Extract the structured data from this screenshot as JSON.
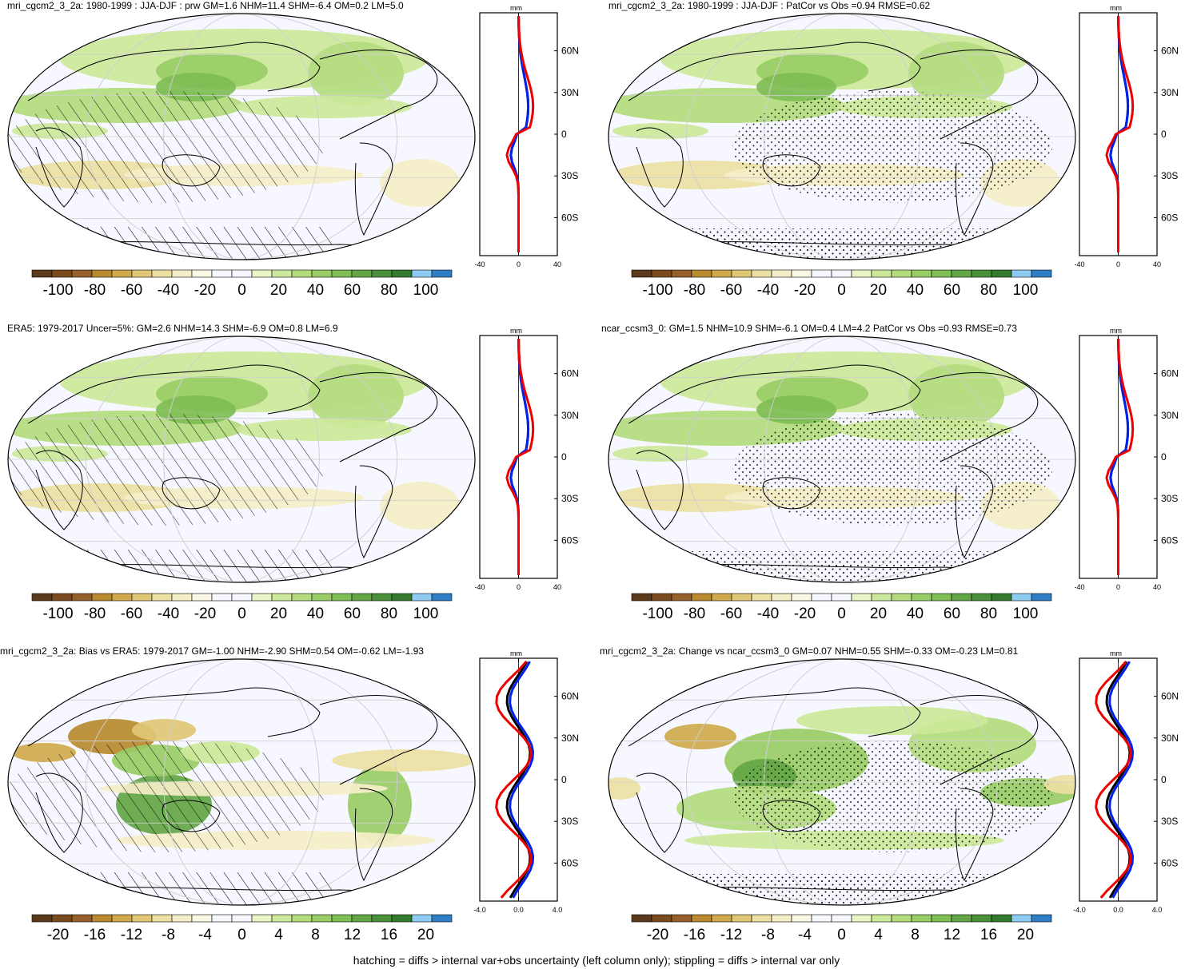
{
  "panels": [
    {
      "id": "p1",
      "title": "mri_cgcm2_3_2a: 1980-1999 : JJA-DJF : prw GM=1.6 NHM=11.4 SHM=-6.4 OM=0.2 LM=5.0",
      "zonal": {
        "unit": "mm",
        "xticks": [
          "-40",
          "0",
          "40"
        ],
        "xlim": [
          -40,
          40
        ],
        "lat_labels": [
          "60N",
          "30N",
          "0",
          "30S",
          "60S"
        ]
      },
      "colorbar": {
        "labels": [
          "-100",
          "-80",
          "-60",
          "-40",
          "-20",
          "0",
          "20",
          "40",
          "60",
          "80",
          "100"
        ]
      },
      "pattern": "hatch"
    },
    {
      "id": "p2",
      "title": "mri_cgcm2_3_2a: 1980-1999 : JJA-DJF : PatCor vs Obs =0.94 RMSE=0.62",
      "zonal": {
        "unit": "mm",
        "xticks": [
          "-40",
          "0",
          "40"
        ],
        "xlim": [
          -40,
          40
        ],
        "lat_labels": [
          "60N",
          "30N",
          "0",
          "30S",
          "60S"
        ]
      },
      "colorbar": {
        "labels": [
          "-100",
          "-80",
          "-60",
          "-40",
          "-20",
          "0",
          "20",
          "40",
          "60",
          "80",
          "100"
        ]
      },
      "pattern": "stipple"
    },
    {
      "id": "p3",
      "title": "ERA5: 1979-2017 Uncer=5%: GM=2.6 NHM=14.3 SHM=-6.9 OM=0.8 LM=6.9",
      "zonal": {
        "unit": "mm",
        "xticks": [
          "-40",
          "0",
          "40"
        ],
        "xlim": [
          -40,
          40
        ],
        "lat_labels": [
          "60N",
          "30N",
          "0",
          "30S",
          "60S"
        ]
      },
      "colorbar": {
        "labels": [
          "-100",
          "-80",
          "-60",
          "-40",
          "-20",
          "0",
          "20",
          "40",
          "60",
          "80",
          "100"
        ]
      },
      "pattern": "hatch"
    },
    {
      "id": "p4",
      "title": "ncar_ccsm3_0: GM=1.5 NHM=10.9 SHM=-6.1 OM=0.4 LM=4.2 PatCor vs Obs =0.93 RMSE=0.73",
      "zonal": {
        "unit": "mm",
        "xticks": [
          "-40",
          "0",
          "40"
        ],
        "xlim": [
          -40,
          40
        ],
        "lat_labels": [
          "60N",
          "30N",
          "0",
          "30S",
          "60S"
        ]
      },
      "colorbar": {
        "labels": [
          "-100",
          "-80",
          "-60",
          "-40",
          "-20",
          "0",
          "20",
          "40",
          "60",
          "80",
          "100"
        ]
      },
      "pattern": "stipple"
    },
    {
      "id": "p5",
      "title": "mri_cgcm2_3_2a: Bias vs ERA5: 1979-2017 GM=-1.00 NHM=-2.90 SHM=0.54 OM=-0.62 LM=-1.93",
      "zonal": {
        "unit": "mm",
        "xticks": [
          "-4.0",
          "0.0",
          "4.0"
        ],
        "xlim": [
          -4,
          4
        ],
        "lat_labels": [
          "60N",
          "30N",
          "0",
          "30S",
          "60S"
        ]
      },
      "colorbar": {
        "labels": [
          "-20",
          "-16",
          "-12",
          "-8",
          "-4",
          "0",
          "4",
          "8",
          "12",
          "16",
          "20"
        ]
      },
      "pattern": "hatch"
    },
    {
      "id": "p6",
      "title": "mri_cgcm2_3_2a: Change vs ncar_ccsm3_0 GM=0.07 NHM=0.55 SHM=-0.33 OM=-0.23 LM=0.81",
      "zonal": {
        "unit": "mm",
        "xticks": [
          "-4.0",
          "0.0",
          "4.0"
        ],
        "xlim": [
          -4,
          4
        ],
        "lat_labels": [
          "60N",
          "30N",
          "0",
          "30S",
          "60S"
        ]
      },
      "colorbar": {
        "labels": [
          "-20",
          "-16",
          "-12",
          "-8",
          "-4",
          "0",
          "4",
          "8",
          "12",
          "16",
          "20"
        ]
      },
      "pattern": "stipple"
    }
  ],
  "palette": [
    "#5a3a1a",
    "#7a4b1f",
    "#95602a",
    "#b98a30",
    "#cfa94c",
    "#e0c775",
    "#ece0a2",
    "#f4eec8",
    "#faf8e4",
    "#f7f8ff",
    "#f7f8ff",
    "#e9f5c4",
    "#cce89a",
    "#b3db7e",
    "#98cc66",
    "#7fbd55",
    "#63a645",
    "#4a8f39",
    "#347a2f",
    "#8ecbf2",
    "#2f7ec5"
  ],
  "zonal_colors": {
    "model": "#0022ee",
    "obs": "#ee0000",
    "other": "#000000"
  },
  "footnote": "hatching = diffs > internal var+obs uncertainty (left column only); stippling = diffs > internal var only"
}
